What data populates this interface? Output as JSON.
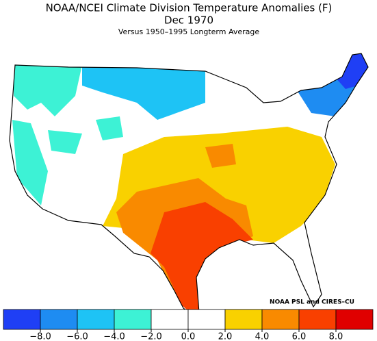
{
  "header": {
    "title": "NOAA/NCEI Climate Division Temperature Anomalies (F)",
    "period": "Dec 1970",
    "subtitle": "Versus 1950–1995 Longterm Average"
  },
  "credit": "NOAA PSL and CIRES–CU",
  "colorbar": {
    "range": [
      -10,
      10
    ],
    "colors": [
      "#1f3ff5",
      "#1e8cf2",
      "#1ec3f5",
      "#3df2d5",
      "#ffffff",
      "#ffffff",
      "#f9d100",
      "#f98a00",
      "#f94000",
      "#e00000"
    ],
    "ticks": [
      {
        "value": -8,
        "label": "−8.0"
      },
      {
        "value": -6,
        "label": "−6.0"
      },
      {
        "value": -4,
        "label": "−4.0"
      },
      {
        "value": -2,
        "label": "−2.0"
      },
      {
        "value": 0,
        "label": "0.0"
      },
      {
        "value": 2,
        "label": "2.0"
      },
      {
        "value": 4,
        "label": "4.0"
      },
      {
        "value": 6,
        "label": "6.0"
      },
      {
        "value": 8,
        "label": "8.0"
      }
    ]
  }
}
